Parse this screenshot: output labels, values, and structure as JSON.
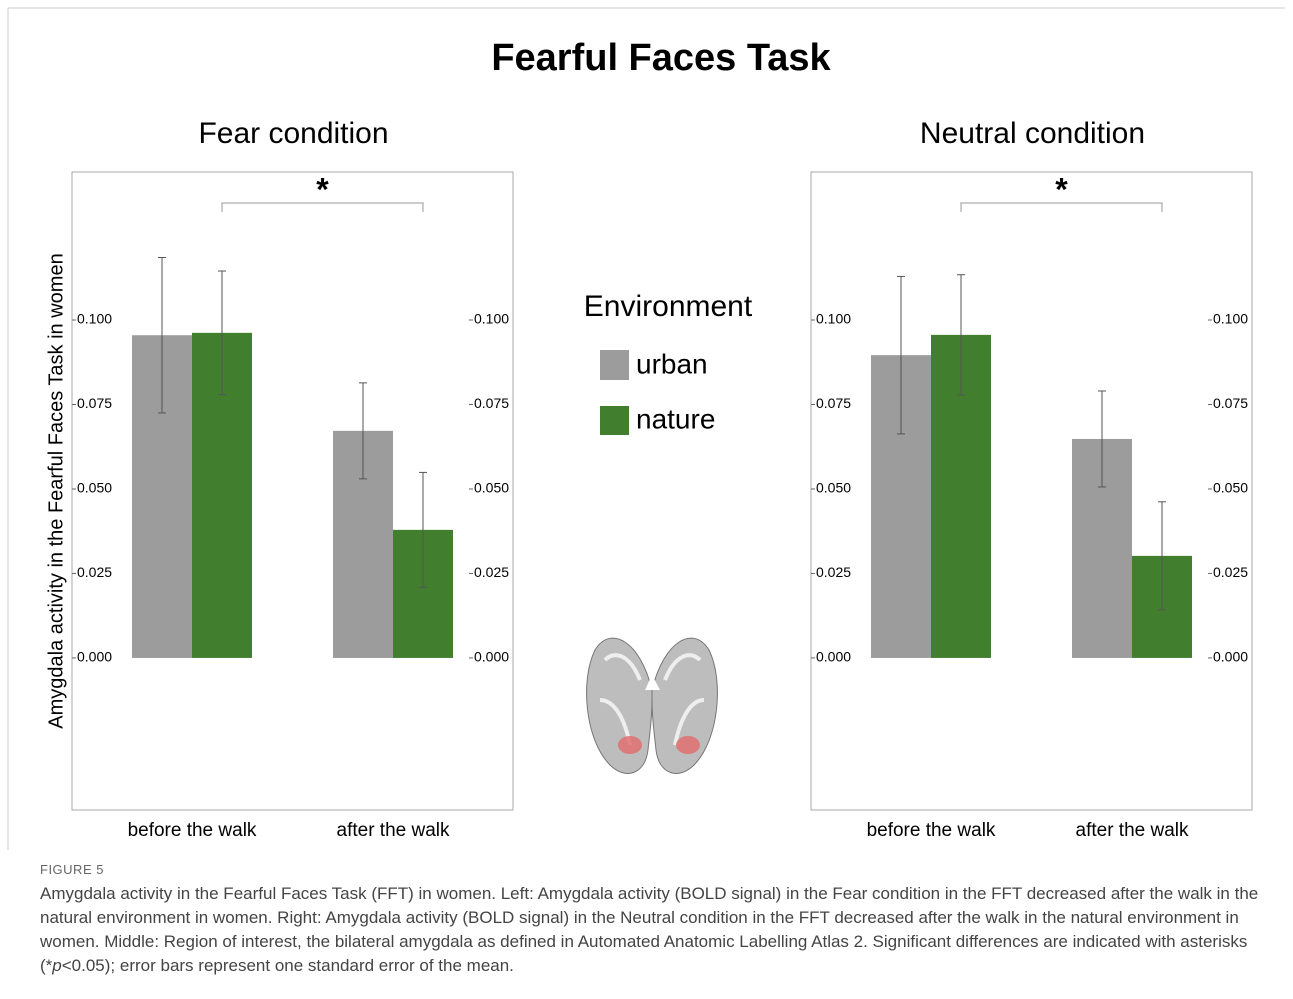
{
  "title": "Fearful Faces Task",
  "legend_title": "Environment",
  "chart_data": [
    {
      "type": "bar",
      "title": "Fear condition",
      "y_label": "Amygdala activity in the Fearful Faces Task in women",
      "categories": [
        "before the walk",
        "after the walk"
      ],
      "series": [
        {
          "name": "urban",
          "color": "#9c9c9d",
          "values": [
            0.0955,
            0.0672
          ],
          "errors": [
            0.023,
            0.0142
          ]
        },
        {
          "name": "nature",
          "color": "#417e2e",
          "values": [
            0.0962,
            0.0379
          ],
          "errors": [
            0.0183,
            0.017
          ]
        }
      ],
      "annotation": "*",
      "ylim": [
        -0.045,
        0.1438
      ],
      "yticks": [
        {
          "value": 0,
          "label": "0.000"
        },
        {
          "value": 0.025,
          "label": "0.025"
        },
        {
          "value": 0.05,
          "label": "0.050"
        },
        {
          "value": 0.075,
          "label": "0.075"
        },
        {
          "value": 0.1,
          "label": "0.100"
        }
      ]
    },
    {
      "type": "bar",
      "title": "Neutral condition",
      "categories": [
        "before the walk",
        "after the walk"
      ],
      "series": [
        {
          "name": "urban",
          "color": "#9c9c9d",
          "values": [
            0.0896,
            0.0648
          ],
          "errors": [
            0.0233,
            0.0142
          ]
        },
        {
          "name": "nature",
          "color": "#417e2e",
          "values": [
            0.0956,
            0.0302
          ],
          "errors": [
            0.0178,
            0.016
          ]
        }
      ],
      "annotation": "*",
      "ylim": [
        -0.045,
        0.1438
      ],
      "yticks": [
        {
          "value": 0,
          "label": "0.000"
        },
        {
          "value": 0.025,
          "label": "0.025"
        },
        {
          "value": 0.05,
          "label": "0.050"
        },
        {
          "value": 0.075,
          "label": "0.075"
        },
        {
          "value": 0.1,
          "label": "0.100"
        }
      ]
    }
  ],
  "caption": {
    "label": "FIGURE 5",
    "parts": [
      "Amygdala activity in the Fearful Faces Task (FFT) in women. Left: Amygdala activity (BOLD signal) in the Fear condition in the FFT decreased after the walk in the natural environment in women. Right: Amygdala activity (BOLD signal) in the Neutral condition in the FFT decreased after the walk in the natural environment in women. Middle: Region of interest, the bilateral amygdala as defined in Automated Anatomic Labelling Atlas 2. Significant differences are indicated with asterisks (*",
      "p",
      "<0.05); error bars represent one standard error of the mean."
    ]
  }
}
